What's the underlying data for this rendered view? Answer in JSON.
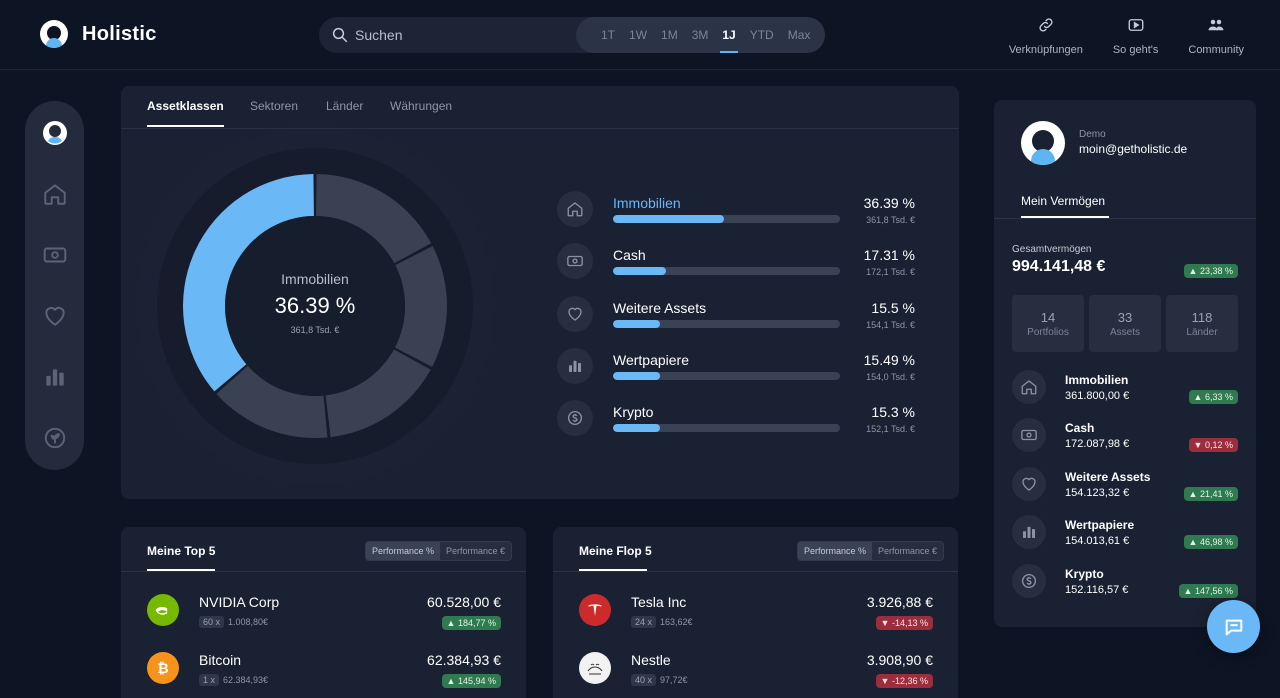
{
  "app": {
    "name": "Holistic"
  },
  "search": {
    "placeholder": "Suchen"
  },
  "time_ranges": {
    "items": [
      "1T",
      "1W",
      "1M",
      "3M",
      "1J",
      "YTD",
      "Max"
    ],
    "active": "1J"
  },
  "topnav": [
    {
      "label": "Verknüpfungen",
      "icon": "link-icon"
    },
    {
      "label": "So geht's",
      "icon": "youtube-icon"
    },
    {
      "label": "Community",
      "icon": "users-icon"
    }
  ],
  "sidebar": {
    "items": [
      {
        "icon": "profile-logo-icon"
      },
      {
        "icon": "home-icon"
      },
      {
        "icon": "cash-icon"
      },
      {
        "icon": "heart-icon"
      },
      {
        "icon": "bar-chart-icon"
      },
      {
        "icon": "sprout-icon"
      }
    ]
  },
  "main": {
    "tabs": [
      "Assetklassen",
      "Sektoren",
      "Länder",
      "Währungen"
    ],
    "active_tab": "Assetklassen",
    "donut": {
      "center_label": "Immobilien",
      "center_value": "36.39 %",
      "center_sub": "361,8 Tsd. €",
      "highlight_color": "#6ab8f5",
      "segment_color": "#3a4152"
    },
    "assets": [
      {
        "name": "Immobilien",
        "percent_label": "36.39 %",
        "amount": "361,8 Tsd. €",
        "share": 36.39,
        "icon": "home-icon",
        "highlight": true
      },
      {
        "name": "Cash",
        "percent_label": "17.31 %",
        "amount": "172,1 Tsd. €",
        "share": 17.31,
        "icon": "cash-icon",
        "highlight": false
      },
      {
        "name": "Weitere Assets",
        "percent_label": "15.5 %",
        "amount": "154,1 Tsd. €",
        "share": 15.5,
        "icon": "heart-icon",
        "highlight": false
      },
      {
        "name": "Wertpapiere",
        "percent_label": "15.49 %",
        "amount": "154,0 Tsd. €",
        "share": 15.49,
        "icon": "bar-chart-icon",
        "highlight": false
      },
      {
        "name": "Krypto",
        "percent_label": "15.3 %",
        "amount": "152,1 Tsd. €",
        "share": 15.3,
        "icon": "crypto-coin-icon",
        "highlight": false
      }
    ]
  },
  "top5": {
    "title": "Meine Top 5",
    "toggle": [
      "Performance %",
      "Performance €"
    ],
    "items": [
      {
        "name": "NVIDIA Corp",
        "qty": "60 x",
        "price": "1.008,80€",
        "value": "60.528,00 €",
        "change": "184,77 %",
        "dir": "up",
        "logo": "nvidia-logo",
        "logo_text": "",
        "logo_color": "#76b900"
      },
      {
        "name": "Bitcoin",
        "qty": "1 x",
        "price": "62.384,93€",
        "value": "62.384,93 €",
        "change": "145,94 %",
        "dir": "up",
        "logo": "bitcoin-logo",
        "logo_text": "₿",
        "logo_color": "#f7931a"
      }
    ]
  },
  "flop5": {
    "title": "Meine Flop 5",
    "toggle": [
      "Performance %",
      "Performance €"
    ],
    "items": [
      {
        "name": "Tesla Inc",
        "qty": "24 x",
        "price": "163,62€",
        "value": "3.926,88 €",
        "change": "-14,13 %",
        "dir": "down",
        "logo": "tesla-logo",
        "logo_text": "T",
        "logo_color": "#cc2b2b"
      },
      {
        "name": "Nestle",
        "qty": "40 x",
        "price": "97,72€",
        "value": "3.908,90 €",
        "change": "-12,36 %",
        "dir": "down",
        "logo": "nestle-logo",
        "logo_text": "",
        "logo_color": "#f2f2f2"
      }
    ]
  },
  "profile": {
    "role": "Demo",
    "email": "moin@getholistic.de",
    "tab": "Mein Vermögen",
    "total_label": "Gesamtvermögen",
    "total_value": "994.141,48 €",
    "total_change": "23,38 %",
    "stats": [
      {
        "num": "14",
        "label": "Portfolios"
      },
      {
        "num": "33",
        "label": "Assets"
      },
      {
        "num": "118",
        "label": "Länder"
      }
    ],
    "items": [
      {
        "name": "Immobilien",
        "value": "361.800,00 €",
        "change": "6,33 %",
        "dir": "up",
        "icon": "home-icon"
      },
      {
        "name": "Cash",
        "value": "172.087,98 €",
        "change": "0,12 %",
        "dir": "down",
        "icon": "cash-icon"
      },
      {
        "name": "Weitere Assets",
        "value": "154.123,32 €",
        "change": "21,41 %",
        "dir": "up",
        "icon": "heart-icon"
      },
      {
        "name": "Wertpapiere",
        "value": "154.013,61 €",
        "change": "46,98 %",
        "dir": "up",
        "icon": "bar-chart-icon"
      },
      {
        "name": "Krypto",
        "value": "152.116,57 €",
        "change": "147,56 %",
        "dir": "up",
        "icon": "crypto-coin-icon"
      }
    ]
  },
  "chat": {
    "icon": "chat-bubble-icon"
  }
}
